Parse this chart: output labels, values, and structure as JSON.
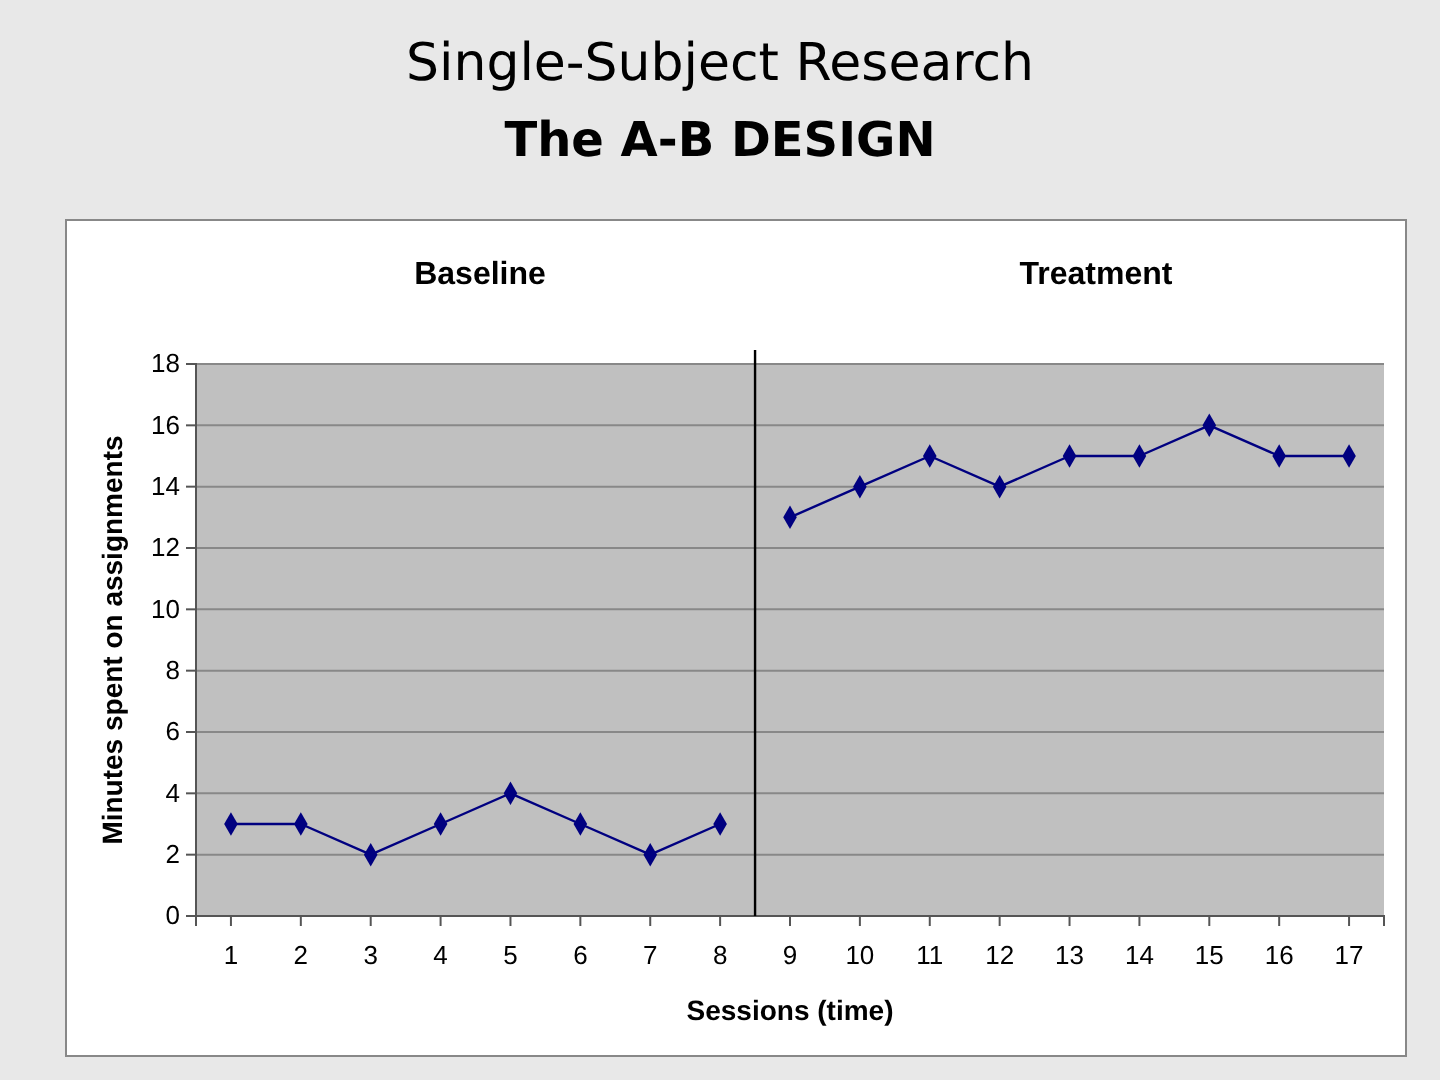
{
  "chart_data": {
    "type": "line",
    "title": "Single-Subject Research",
    "subtitle": "The A-B DESIGN",
    "xlabel": "Sessions (time)",
    "ylabel": "Minutes spent on assignments",
    "annotations": [
      "Baseline",
      "Treatment"
    ],
    "x": [
      1,
      2,
      3,
      4,
      5,
      6,
      7,
      8,
      9,
      10,
      11,
      12,
      13,
      14,
      15,
      16,
      17
    ],
    "series": [
      {
        "color": "#000080",
        "values": [
          3,
          3,
          2,
          3,
          4,
          3,
          2,
          3,
          null,
          null,
          null,
          null,
          null,
          null,
          null,
          null,
          null
        ]
      },
      {
        "color": "#000080",
        "values": [
          null,
          null,
          null,
          null,
          null,
          null,
          null,
          null,
          13,
          14,
          15,
          14,
          15,
          15,
          16,
          15,
          15
        ]
      }
    ],
    "xlim": [
      0.5,
      17.5
    ],
    "xticks": [
      1,
      2,
      3,
      4,
      5,
      6,
      7,
      8,
      9,
      10,
      11,
      12,
      13,
      14,
      15,
      16,
      17
    ],
    "ylim": [
      0,
      18
    ],
    "yticks": [
      0,
      2,
      4,
      6,
      8,
      10,
      12,
      14,
      16,
      18
    ],
    "ref_lines": [
      {
        "axis": "x",
        "value": 8.5,
        "color": "#000000"
      }
    ],
    "grid": "y",
    "marker": "diamond",
    "line_style": "solid"
  }
}
